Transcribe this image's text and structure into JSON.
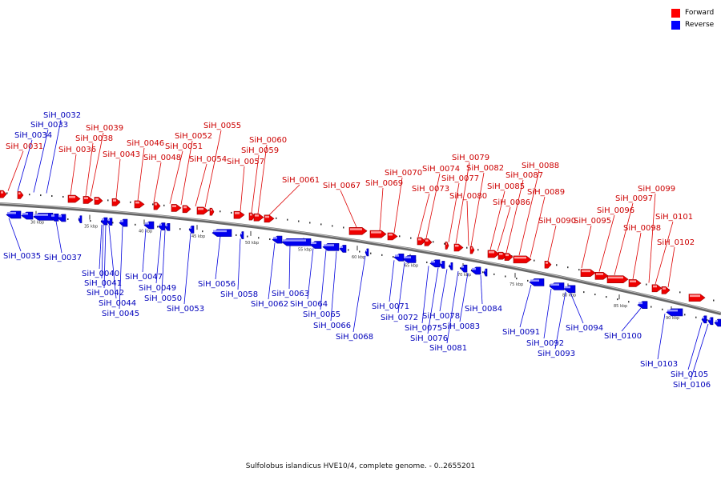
{
  "legend": {
    "forward": {
      "label": "Forward",
      "color": "#ff0000"
    },
    "reverse": {
      "label": "Reverse",
      "color": "#0000ff"
    }
  },
  "caption": "Sulfolobus islandicus HVE10/4, complete genome. - 0..2655201",
  "ticks": [
    "30 kbp",
    "35 kbp",
    "40 kbp",
    "45 kbp",
    "50 kbp",
    "55 kbp",
    "60 kbp",
    "65 kbp",
    "70 kbp",
    "75 kbp",
    "80 kbp",
    "85 kbp",
    "90 kbp"
  ],
  "forward_genes": [
    "SiH_0031",
    "SiH_0036",
    "SiH_0038",
    "SiH_0039",
    "SiH_0043",
    "SiH_0046",
    "SiH_0048",
    "SiH_0051",
    "SiH_0052",
    "SiH_0054",
    "SiH_0055",
    "SiH_0057",
    "SiH_0059",
    "SiH_0060",
    "SiH_0061",
    "SiH_0067",
    "SiH_0069",
    "SiH_0070",
    "SiH_0073",
    "SiH_0074",
    "SiH_0077",
    "SiH_0079",
    "SiH_0080",
    "SiH_0082",
    "SiH_0085",
    "SiH_0086",
    "SiH_0087",
    "SiH_0088",
    "SiH_0089",
    "SiH_0090",
    "SiH_0095",
    "SiH_0096",
    "SiH_0097",
    "SiH_0098",
    "SiH_0099",
    "SiH_0101",
    "SiH_0102"
  ],
  "reverse_genes": [
    "SiH_0032",
    "SiH_0033",
    "SiH_0034",
    "SiH_0035",
    "SiH_0037",
    "SiH_0040",
    "SiH_0041",
    "SiH_0042",
    "SiH_0044",
    "SiH_0045",
    "SiH_0047",
    "SiH_0049",
    "SiH_0050",
    "SiH_0053",
    "SiH_0056",
    "SiH_0058",
    "SiH_0062",
    "SiH_0063",
    "SiH_0064",
    "SiH_0065",
    "SiH_0066",
    "SiH_0068",
    "SiH_0071",
    "SiH_0072",
    "SiH_0075",
    "SiH_0076",
    "SiH_0078",
    "SiH_0081",
    "SiH_0083",
    "SiH_0084",
    "SiH_0091",
    "SiH_0092",
    "SiH_0093",
    "SiH_0094",
    "SiH_0100",
    "SiH_0103",
    "SiH_0105",
    "SiH_0106"
  ]
}
